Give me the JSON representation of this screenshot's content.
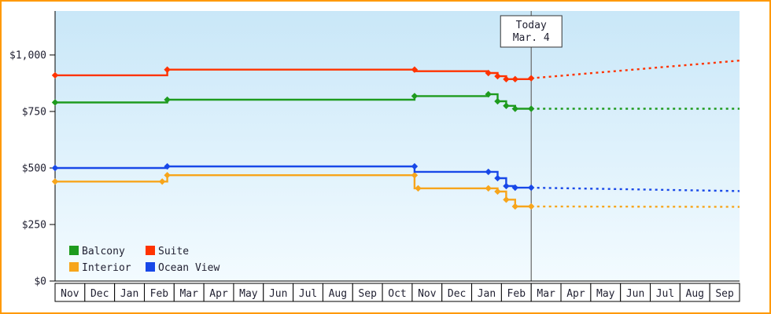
{
  "frame": {
    "border_color": "#ff9900",
    "background": "#ffffff"
  },
  "chart_data": {
    "type": "line",
    "title": "",
    "plot_bg_top": "#c9e7f8",
    "plot_bg_bottom": "#f3fbff",
    "today_line_color": "#666666",
    "ylim": [
      0,
      1190
    ],
    "yticks": [
      {
        "value": 0,
        "label": "$0"
      },
      {
        "value": 250,
        "label": "$250"
      },
      {
        "value": 500,
        "label": "$500"
      },
      {
        "value": 750,
        "label": "$750"
      },
      {
        "value": 1000,
        "label": "$1,000"
      }
    ],
    "months": [
      "Nov",
      "Dec",
      "Jan",
      "Feb",
      "Mar",
      "Apr",
      "May",
      "Jun",
      "Jul",
      "Aug",
      "Sep",
      "Oct",
      "Nov",
      "Dec",
      "Jan",
      "Feb",
      "Mar",
      "Apr",
      "May",
      "Jun",
      "Jul",
      "Aug",
      "Sep"
    ],
    "today": {
      "label_line1": "Today",
      "label_line2": "Mar. 4",
      "month_index": 16
    },
    "series": [
      {
        "name": "Balcony",
        "color": "#1e9b1e",
        "solid": [
          [
            0,
            790
          ],
          [
            3.77,
            790
          ],
          [
            3.77,
            802
          ],
          [
            12.08,
            802
          ],
          [
            12.08,
            818
          ],
          [
            14.56,
            818
          ],
          [
            14.56,
            826
          ],
          [
            14.87,
            826
          ],
          [
            14.87,
            795
          ],
          [
            15.16,
            795
          ],
          [
            15.16,
            775
          ],
          [
            15.46,
            775
          ],
          [
            15.46,
            762
          ],
          [
            16,
            762
          ]
        ],
        "dotted": [
          [
            16,
            762
          ],
          [
            23,
            762
          ]
        ],
        "markers": [
          [
            0,
            790
          ],
          [
            3.77,
            802
          ],
          [
            12.08,
            818
          ],
          [
            14.56,
            826
          ],
          [
            14.87,
            795
          ],
          [
            15.16,
            775
          ],
          [
            15.46,
            762
          ],
          [
            16,
            762
          ]
        ]
      },
      {
        "name": "Suite",
        "color": "#ff3300",
        "solid": [
          [
            0,
            910
          ],
          [
            3.77,
            910
          ],
          [
            3.77,
            935
          ],
          [
            12.08,
            935
          ],
          [
            12.08,
            928
          ],
          [
            14.56,
            928
          ],
          [
            14.56,
            920
          ],
          [
            14.87,
            920
          ],
          [
            14.87,
            906
          ],
          [
            15.16,
            906
          ],
          [
            15.16,
            893
          ],
          [
            16,
            893
          ],
          [
            16,
            897
          ]
        ],
        "dotted": [
          [
            16,
            897
          ],
          [
            23,
            975
          ]
        ],
        "markers": [
          [
            0,
            910
          ],
          [
            3.77,
            935
          ],
          [
            12.08,
            935
          ],
          [
            14.56,
            920
          ],
          [
            14.87,
            906
          ],
          [
            15.16,
            893
          ],
          [
            15.46,
            893
          ],
          [
            16,
            897
          ]
        ]
      },
      {
        "name": "Interior",
        "color": "#f7a51b",
        "solid": [
          [
            0,
            440
          ],
          [
            3.77,
            440
          ],
          [
            3.77,
            468
          ],
          [
            12.08,
            468
          ],
          [
            12.08,
            410
          ],
          [
            14.87,
            410
          ],
          [
            14.87,
            396
          ],
          [
            15.16,
            396
          ],
          [
            15.16,
            360
          ],
          [
            15.46,
            360
          ],
          [
            15.46,
            330
          ],
          [
            16,
            330
          ]
        ],
        "dotted": [
          [
            16,
            330
          ],
          [
            23,
            328
          ]
        ],
        "markers": [
          [
            0,
            440
          ],
          [
            3.6,
            440
          ],
          [
            3.77,
            468
          ],
          [
            12.08,
            468
          ],
          [
            12.2,
            410
          ],
          [
            14.56,
            410
          ],
          [
            14.87,
            396
          ],
          [
            15.16,
            360
          ],
          [
            15.46,
            330
          ],
          [
            16,
            330
          ]
        ]
      },
      {
        "name": "Ocean View",
        "color": "#1848e8",
        "solid": [
          [
            0,
            500
          ],
          [
            3.77,
            500
          ],
          [
            3.77,
            507
          ],
          [
            12.08,
            507
          ],
          [
            12.08,
            483
          ],
          [
            14.87,
            483
          ],
          [
            14.87,
            455
          ],
          [
            15.16,
            455
          ],
          [
            15.16,
            420
          ],
          [
            15.46,
            420
          ],
          [
            15.46,
            413
          ],
          [
            16,
            413
          ]
        ],
        "dotted": [
          [
            16,
            413
          ],
          [
            23,
            398
          ]
        ],
        "markers": [
          [
            0,
            500
          ],
          [
            3.77,
            507
          ],
          [
            12.08,
            507
          ],
          [
            14.56,
            483
          ],
          [
            14.87,
            455
          ],
          [
            15.16,
            420
          ],
          [
            15.46,
            413
          ],
          [
            16,
            413
          ]
        ]
      }
    ],
    "legend": {
      "rows": [
        [
          "Balcony",
          "Suite"
        ],
        [
          "Interior",
          "Ocean View"
        ]
      ]
    }
  }
}
